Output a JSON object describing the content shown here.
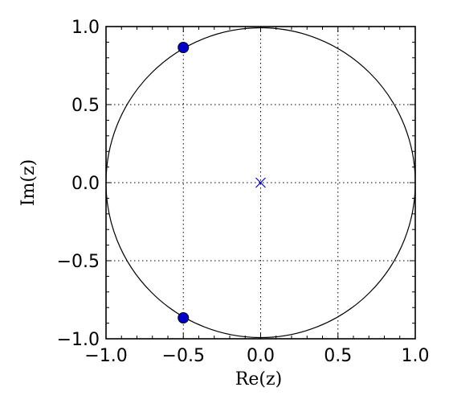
{
  "chart_data": {
    "type": "scatter",
    "title": "",
    "xlabel": "Re(z)",
    "ylabel": "Im(z)",
    "xlim": [
      -1.0,
      1.0
    ],
    "ylim": [
      -1.0,
      1.0
    ],
    "x_ticks": [
      -1.0,
      -0.5,
      0.0,
      0.5,
      1.0
    ],
    "y_ticks": [
      -1.0,
      -0.5,
      0.0,
      0.5,
      1.0
    ],
    "x_tick_labels": [
      "−1.0",
      "−0.5",
      "0.0",
      "0.5",
      "1.0"
    ],
    "y_tick_labels": [
      "−1.0",
      "−0.5",
      "0.0",
      "0.5",
      "1.0"
    ],
    "grid": true,
    "grid_style": "dotted",
    "unit_circle": {
      "center": [
        0.0,
        0.0
      ],
      "radius": 1.0
    },
    "series": [
      {
        "marker": "circle",
        "color": "#0000cc",
        "points": [
          [
            -0.5,
            0.866
          ],
          [
            -0.5,
            -0.866
          ]
        ]
      },
      {
        "marker": "x",
        "color": "#0000ff",
        "points": [
          [
            0.0,
            0.0
          ]
        ]
      }
    ]
  }
}
